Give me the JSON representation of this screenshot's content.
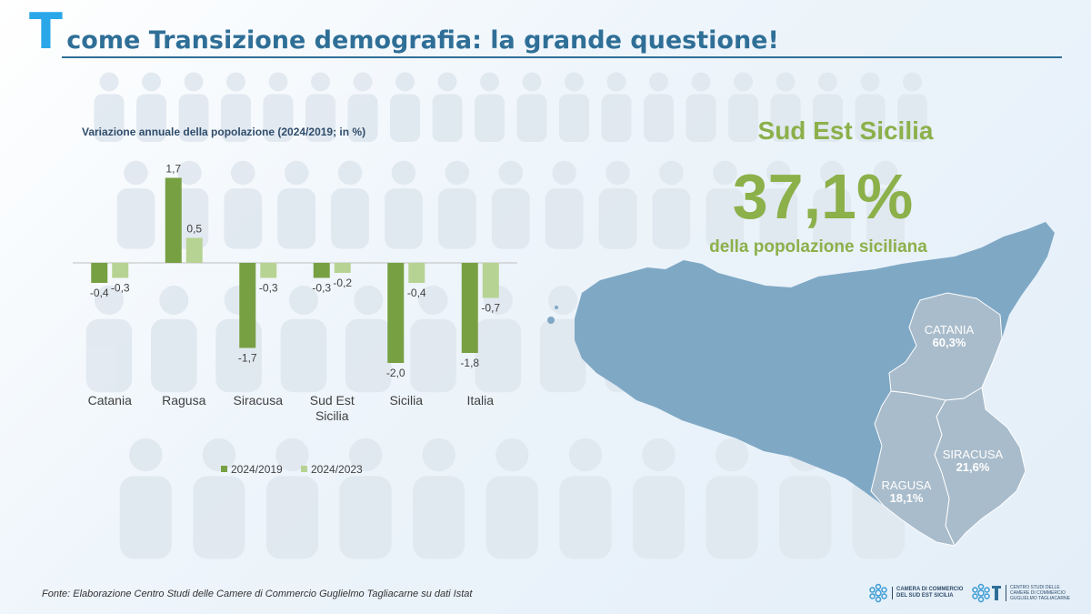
{
  "header": {
    "title_letter": "T",
    "title_rest": "come Transizione demografia: la grande questione!"
  },
  "chart_data": {
    "type": "bar",
    "title": "Variazione annuale della popolazione (2024/2019; in %)",
    "categories": [
      "Catania",
      "Ragusa",
      "Siracusa",
      "Sud Est Sicilia",
      "Sicilia",
      "Italia"
    ],
    "series": [
      {
        "name": "2024/2019",
        "color": "#77a043",
        "values": [
          -0.4,
          1.7,
          -1.7,
          -0.3,
          -2.0,
          -1.8
        ],
        "labels": [
          "-0,4",
          "1,7",
          "-1,7",
          "-0,3",
          "-2,0",
          "-1,8"
        ]
      },
      {
        "name": "2024/2023",
        "color": "#b7d393",
        "values": [
          -0.3,
          0.5,
          -0.3,
          -0.2,
          -0.4,
          -0.7
        ],
        "labels": [
          "-0,3",
          "0,5",
          "-0,3",
          "-0,2",
          "-0,4",
          "-0,7"
        ]
      }
    ],
    "legend_position": "bottom",
    "grid": false
  },
  "highlight": {
    "heading": "Sud Est Sicilia",
    "value": "37,1%",
    "caption": "della popolazione siciliana"
  },
  "map": {
    "island_color": "#7fa8c5",
    "province_color": "#a9bccb",
    "provinces": [
      {
        "name": "CATANIA",
        "pct": "60,3%"
      },
      {
        "name": "SIRACUSA",
        "pct": "21,6%"
      },
      {
        "name": "RAGUSA",
        "pct": "18,1%"
      }
    ]
  },
  "footer": {
    "source": "Fonte: Elaborazione Centro Studi delle Camere di Commercio Guglielmo Tagliacarne su dati Istat",
    "logo1_line1": "CAMERA DI COMMERCIO",
    "logo1_line2": "DEL SUD EST SICILIA",
    "logo2_line1": "CENTRO STUDI DELLE",
    "logo2_line2": "CAMERE DI COMMERCIO",
    "logo2_line3": "GUGLIELMO TAGLIACARNE"
  }
}
